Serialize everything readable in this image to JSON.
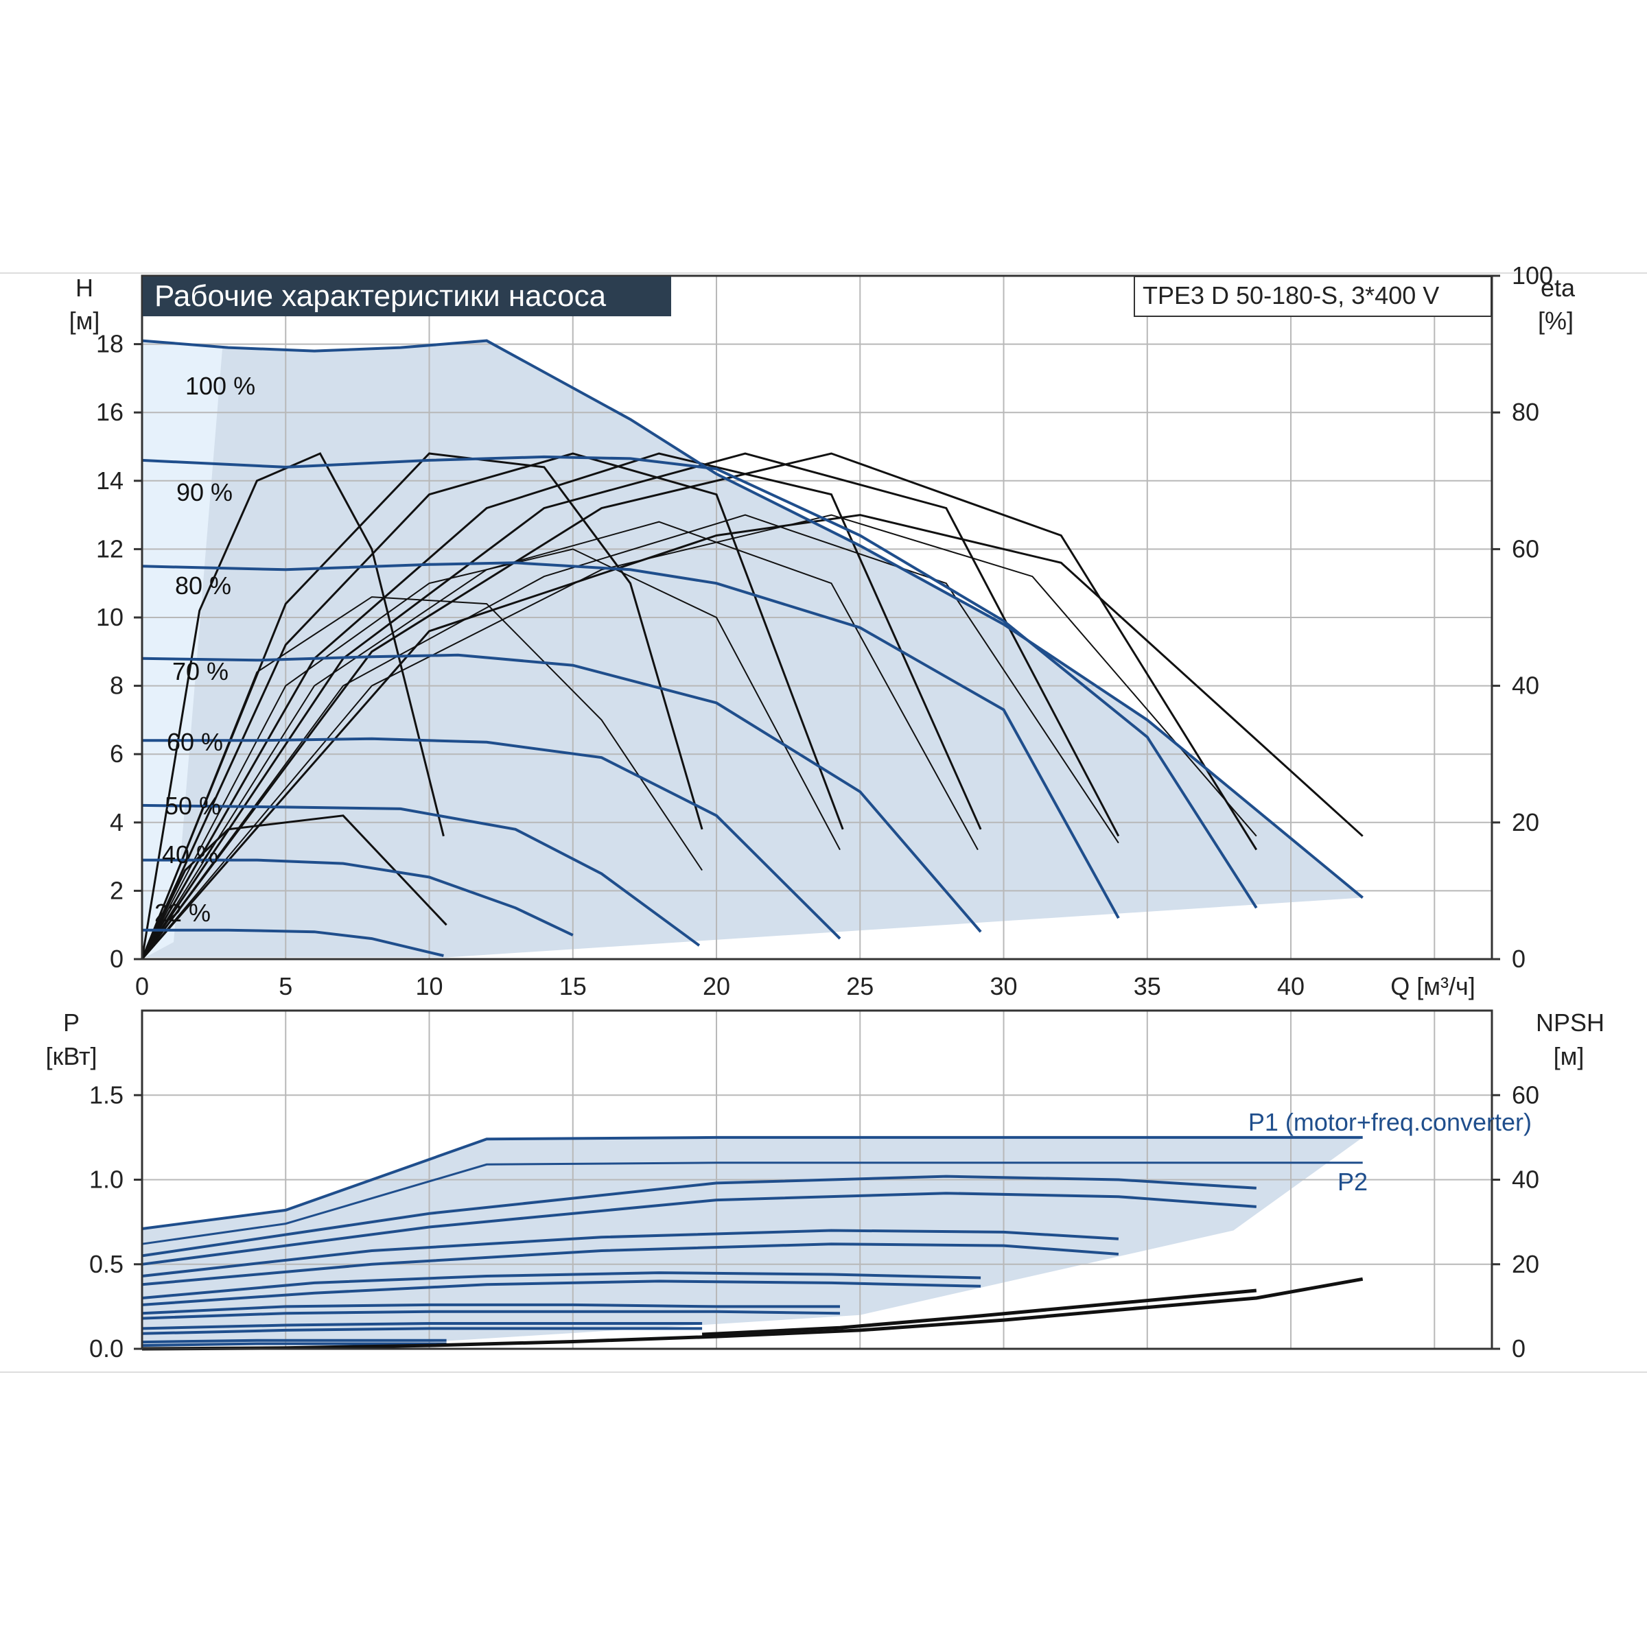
{
  "chart_data": [
    {
      "type": "line",
      "title": "Рабочие характеристики насоса",
      "model_label": "TPE3 D 50-180-S, 3*400 V",
      "ylabel_left": [
        "H",
        "[м]"
      ],
      "ylabel_right": [
        "eta",
        "[%]"
      ],
      "xlabel": "Q [м³/ч]",
      "xlim": [
        0,
        47
      ],
      "ylim_left": [
        0,
        20
      ],
      "ylim_right": [
        0,
        100
      ],
      "x_ticks": [
        "0",
        "5",
        "10",
        "15",
        "20",
        "25",
        "30",
        "35",
        "40"
      ],
      "y_ticks_left": [
        "0",
        "2",
        "4",
        "6",
        "8",
        "10",
        "12",
        "14",
        "16",
        "18"
      ],
      "y_ticks_right": [
        "0",
        "20",
        "40",
        "60",
        "80",
        "100"
      ],
      "grid": true,
      "colors": {
        "curve": "#1f4e8c",
        "efficiency": "#111111",
        "area": "#d3dfec",
        "area_light": "#e6f1fb",
        "title_bg": "#2c3e50"
      },
      "head_curves": [
        {
          "label": "100 %",
          "x": [
            0,
            3,
            6,
            9,
            12,
            17,
            20,
            25,
            30,
            35,
            42.5
          ],
          "y": [
            18.1,
            17.9,
            17.8,
            17.9,
            18.1,
            15.8,
            14.2,
            12.1,
            9.8,
            7.0,
            1.8
          ]
        },
        {
          "label": "90 %",
          "x": [
            0,
            5,
            10,
            14,
            17,
            20,
            25,
            30,
            35,
            38.8
          ],
          "y": [
            14.6,
            14.4,
            14.6,
            14.7,
            14.65,
            14.35,
            12.4,
            9.9,
            6.5,
            1.5
          ]
        },
        {
          "label": "80 %",
          "x": [
            0,
            5,
            10,
            13,
            17,
            20,
            25,
            30,
            34
          ],
          "y": [
            11.5,
            11.4,
            11.55,
            11.6,
            11.4,
            11.0,
            9.7,
            7.3,
            1.2
          ]
        },
        {
          "label": "70 %",
          "x": [
            0,
            4,
            8,
            11,
            15,
            20,
            25,
            29.2
          ],
          "y": [
            8.8,
            8.75,
            8.85,
            8.9,
            8.6,
            7.5,
            4.9,
            0.8
          ]
        },
        {
          "label": "60 %",
          "x": [
            0,
            4,
            8,
            12,
            16,
            20,
            24.3
          ],
          "y": [
            6.4,
            6.4,
            6.45,
            6.35,
            5.9,
            4.2,
            0.6
          ]
        },
        {
          "label": "50 %",
          "x": [
            0,
            5,
            9,
            13,
            16,
            19.4
          ],
          "y": [
            4.5,
            4.45,
            4.4,
            3.8,
            2.5,
            0.4
          ]
        },
        {
          "label": "40 %",
          "x": [
            0,
            4,
            7,
            10,
            13,
            15
          ],
          "y": [
            2.9,
            2.9,
            2.8,
            2.4,
            1.5,
            0.7
          ]
        },
        {
          "label": "22 %",
          "x": [
            0,
            3,
            6,
            8,
            10.5
          ],
          "y": [
            0.85,
            0.85,
            0.8,
            0.6,
            0.1
          ]
        }
      ],
      "efficiency_curves_pct": [
        {
          "x": [
            0,
            2,
            4,
            6.2,
            8,
            10.5
          ],
          "y": [
            0,
            51,
            70,
            74,
            60,
            18
          ]
        },
        {
          "x": [
            0,
            1.5,
            3,
            7,
            10.6
          ],
          "y": [
            0,
            13,
            19,
            21,
            5
          ]
        },
        {
          "x": [
            0,
            5,
            10,
            14,
            17,
            19.5
          ],
          "y": [
            0,
            52,
            74,
            72,
            55,
            19
          ]
        },
        {
          "x": [
            0,
            5,
            10,
            15,
            20,
            24.4
          ],
          "y": [
            0,
            46,
            68,
            74,
            68,
            19
          ]
        },
        {
          "x": [
            0,
            6,
            12,
            18,
            24,
            29.2
          ],
          "y": [
            0,
            44,
            66,
            74,
            68,
            19
          ]
        },
        {
          "x": [
            0,
            7,
            14,
            21,
            28,
            34
          ],
          "y": [
            0,
            44,
            66,
            74,
            66,
            18
          ]
        },
        {
          "x": [
            0,
            8,
            16,
            24,
            32,
            38.8
          ],
          "y": [
            0,
            45,
            66,
            74,
            62,
            16
          ]
        },
        {
          "x": [
            0,
            10,
            20,
            25,
            32,
            42.5
          ],
          "y": [
            0,
            48,
            62,
            65,
            58,
            18
          ]
        },
        {
          "x": [
            0,
            4,
            8,
            12,
            16,
            19.5
          ],
          "y": [
            0,
            42,
            53,
            52,
            35,
            13
          ]
        },
        {
          "x": [
            0,
            5,
            10,
            15,
            20,
            24.3
          ],
          "y": [
            0,
            40,
            55,
            60,
            50,
            16
          ]
        },
        {
          "x": [
            0,
            6,
            12,
            18,
            24,
            29.1
          ],
          "y": [
            0,
            40,
            57,
            64,
            55,
            16
          ]
        },
        {
          "x": [
            0,
            7,
            14,
            21,
            28,
            34
          ],
          "y": [
            0,
            40,
            56,
            65,
            55,
            17
          ]
        },
        {
          "x": [
            0,
            8,
            16,
            24,
            31,
            38.8
          ],
          "y": [
            0,
            40,
            57,
            65,
            56,
            18
          ]
        }
      ]
    },
    {
      "type": "line",
      "ylabel_left": [
        "P",
        "[кВт]"
      ],
      "ylabel_right": [
        "NPSH",
        "[м]"
      ],
      "xlim": [
        0,
        47
      ],
      "ylim_left": [
        0,
        2.0
      ],
      "ylim_right": [
        0,
        80
      ],
      "y_ticks_left": [
        "0.0",
        "0.5",
        "1.0",
        "1.5"
      ],
      "y_ticks_right": [
        "0",
        "20",
        "40",
        "60"
      ],
      "grid": true,
      "legend_labels": {
        "p1": "P1 (motor+freq.converter)",
        "p2": "P2"
      },
      "power_curves": [
        {
          "name": "P1",
          "x": [
            0,
            5,
            12,
            20,
            42.5
          ],
          "y": [
            0.71,
            0.82,
            1.24,
            1.25,
            1.25
          ]
        },
        {
          "name": "P2",
          "x": [
            0,
            5,
            12,
            20,
            42.5
          ],
          "y": [
            0.62,
            0.74,
            1.09,
            1.1,
            1.1
          ]
        },
        {
          "x": [
            0,
            10,
            20,
            28,
            34,
            38.8
          ],
          "y": [
            0.55,
            0.8,
            0.98,
            1.02,
            1.0,
            0.95
          ]
        },
        {
          "x": [
            0,
            10,
            20,
            28,
            34,
            38.8
          ],
          "y": [
            0.5,
            0.72,
            0.88,
            0.92,
            0.9,
            0.84
          ]
        },
        {
          "x": [
            0,
            8,
            16,
            24,
            30,
            34
          ],
          "y": [
            0.43,
            0.58,
            0.66,
            0.7,
            0.69,
            0.65
          ]
        },
        {
          "x": [
            0,
            8,
            16,
            24,
            30,
            34
          ],
          "y": [
            0.38,
            0.5,
            0.58,
            0.62,
            0.61,
            0.56
          ]
        },
        {
          "x": [
            0,
            6,
            12,
            18,
            24,
            29.2
          ],
          "y": [
            0.3,
            0.39,
            0.43,
            0.45,
            0.44,
            0.42
          ]
        },
        {
          "x": [
            0,
            6,
            12,
            18,
            24,
            29.2
          ],
          "y": [
            0.26,
            0.33,
            0.38,
            0.4,
            0.39,
            0.37
          ]
        },
        {
          "x": [
            0,
            5,
            10,
            15,
            20,
            24.3
          ],
          "y": [
            0.21,
            0.25,
            0.26,
            0.26,
            0.25,
            0.25
          ]
        },
        {
          "x": [
            0,
            5,
            10,
            15,
            20,
            24.3
          ],
          "y": [
            0.18,
            0.21,
            0.22,
            0.22,
            0.22,
            0.21
          ]
        },
        {
          "x": [
            0,
            5,
            10,
            15,
            19.5
          ],
          "y": [
            0.12,
            0.14,
            0.15,
            0.15,
            0.15
          ]
        },
        {
          "x": [
            0,
            5,
            10,
            15,
            19.5
          ],
          "y": [
            0.09,
            0.11,
            0.12,
            0.12,
            0.12
          ]
        },
        {
          "x": [
            0,
            4,
            8,
            10.6
          ],
          "y": [
            0.04,
            0.05,
            0.05,
            0.05
          ]
        },
        {
          "x": [
            0,
            4,
            8,
            10.6
          ],
          "y": [
            0.02,
            0.03,
            0.03,
            0.03
          ]
        }
      ],
      "npsh_curves": [
        {
          "x": [
            0,
            5,
            10,
            15,
            20,
            25,
            30,
            35,
            38.8,
            42.5
          ],
          "y": [
            0,
            0.2,
            0.8,
            1.7,
            2.9,
            4.4,
            6.8,
            9.8,
            12.0,
            16.5
          ]
        },
        {
          "x": [
            19.5,
            24.3,
            29.2,
            34,
            38.8
          ],
          "y": [
            3.4,
            5.0,
            7.8,
            10.8,
            13.8
          ]
        }
      ]
    }
  ]
}
